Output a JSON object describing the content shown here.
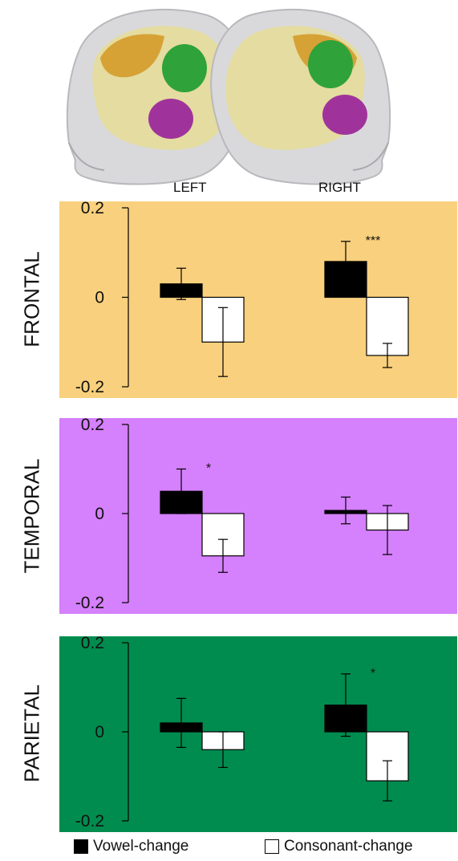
{
  "hemispheres": [
    "LEFT",
    "RIGHT"
  ],
  "legend": {
    "vowel_label": "Vowel-change",
    "consonant_label": "Consonant-change",
    "vowel_color": "#000000",
    "consonant_color": "#ffffff"
  },
  "region_colors": {
    "frontal": "#f9d07d",
    "temporal": "#d580fc",
    "parietal": "#008c4f"
  },
  "chart_data": [
    {
      "type": "bar",
      "region": "FRONTAL",
      "ylabel": "FRONTAL",
      "ylim": [
        -0.2,
        0.2
      ],
      "yticks": [
        "0.2",
        "0",
        "-0.2"
      ],
      "categories": [
        "LEFT",
        "RIGHT"
      ],
      "series": [
        {
          "name": "Vowel-change",
          "values": [
            0.03,
            0.08
          ],
          "errors": [
            0.035,
            0.045
          ]
        },
        {
          "name": "Consonant-change",
          "values": [
            -0.1,
            -0.13
          ],
          "errors": [
            0.077,
            0.027
          ]
        }
      ],
      "annotations": [
        {
          "category": "RIGHT",
          "text": "***"
        }
      ]
    },
    {
      "type": "bar",
      "region": "TEMPORAL",
      "ylabel": "TEMPORAL",
      "ylim": [
        -0.2,
        0.2
      ],
      "yticks": [
        "0.2",
        "0",
        "-0.2"
      ],
      "categories": [
        "LEFT",
        "RIGHT"
      ],
      "series": [
        {
          "name": "Vowel-change",
          "values": [
            0.05,
            0.007
          ],
          "errors": [
            0.05,
            0.03
          ]
        },
        {
          "name": "Consonant-change",
          "values": [
            -0.095,
            -0.037
          ],
          "errors": [
            0.037,
            0.055
          ]
        }
      ],
      "annotations": [
        {
          "category": "LEFT",
          "text": "*"
        }
      ]
    },
    {
      "type": "bar",
      "region": "PARIETAL",
      "ylabel": "PARIETAL",
      "ylim": [
        -0.2,
        0.2
      ],
      "yticks": [
        "0.2",
        "0",
        "-0.2"
      ],
      "categories": [
        "LEFT",
        "RIGHT"
      ],
      "series": [
        {
          "name": "Vowel-change",
          "values": [
            0.02,
            0.06
          ],
          "errors": [
            0.055,
            0.07
          ]
        },
        {
          "name": "Consonant-change",
          "values": [
            -0.04,
            -0.11
          ],
          "errors": [
            0.04,
            0.045
          ]
        }
      ],
      "annotations": [
        {
          "category": "RIGHT",
          "text": "*"
        }
      ]
    }
  ]
}
